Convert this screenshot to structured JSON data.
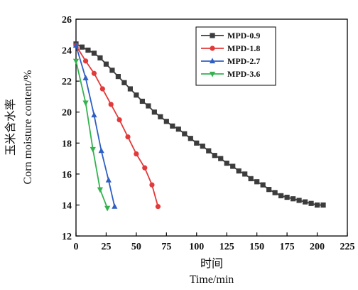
{
  "chart_data": {
    "type": "line",
    "xlabel_cn": "时间",
    "xlabel_en": "Time/min",
    "ylabel_cn": "玉米含水率",
    "ylabel_en": "Corn  moisture  content/%",
    "xlim": [
      0,
      225
    ],
    "ylim": [
      12,
      26
    ],
    "x_ticks": [
      "0",
      "25",
      "50",
      "75",
      "100",
      "125",
      "150",
      "175",
      "200",
      "225"
    ],
    "y_ticks": [
      "12",
      "14",
      "16",
      "18",
      "20",
      "22",
      "24",
      "26"
    ],
    "legend_position": "top-right",
    "grid": false,
    "series": [
      {
        "name": "MPD-0.9",
        "color": "#3c3c3c",
        "marker": "square",
        "x": [
          0,
          5,
          10,
          15,
          20,
          25,
          30,
          35,
          40,
          45,
          50,
          55,
          60,
          65,
          70,
          75,
          80,
          85,
          90,
          95,
          100,
          105,
          110,
          115,
          120,
          125,
          130,
          135,
          140,
          145,
          150,
          155,
          160,
          165,
          170,
          175,
          180,
          185,
          190,
          195,
          200,
          205
        ],
        "y": [
          24.4,
          24.2,
          24.0,
          23.8,
          23.5,
          23.1,
          22.7,
          22.3,
          21.9,
          21.5,
          21.1,
          20.7,
          20.4,
          20.0,
          19.7,
          19.4,
          19.1,
          18.9,
          18.6,
          18.3,
          18.0,
          17.8,
          17.5,
          17.2,
          17.0,
          16.7,
          16.5,
          16.2,
          16.0,
          15.7,
          15.5,
          15.3,
          15.0,
          14.8,
          14.6,
          14.5,
          14.4,
          14.3,
          14.2,
          14.1,
          14.0,
          14.0
        ]
      },
      {
        "name": "MPD-1.8",
        "color": "#e23a3a",
        "marker": "circle",
        "x": [
          0,
          8,
          15,
          22,
          29,
          36,
          43,
          50,
          57,
          63,
          68
        ],
        "y": [
          24.3,
          23.3,
          22.5,
          21.5,
          20.5,
          19.5,
          18.4,
          17.3,
          16.4,
          15.3,
          13.9
        ]
      },
      {
        "name": "MPD-2.7",
        "color": "#2f5fc4",
        "marker": "triangle-up",
        "x": [
          0,
          8,
          15,
          21,
          27,
          32
        ],
        "y": [
          24.3,
          22.2,
          19.8,
          17.5,
          15.6,
          13.9
        ]
      },
      {
        "name": "MPD-3.6",
        "color": "#33b24f",
        "marker": "triangle-down",
        "x": [
          0,
          8,
          14,
          20,
          26
        ],
        "y": [
          23.3,
          20.6,
          17.6,
          15.0,
          13.8
        ]
      }
    ]
  }
}
